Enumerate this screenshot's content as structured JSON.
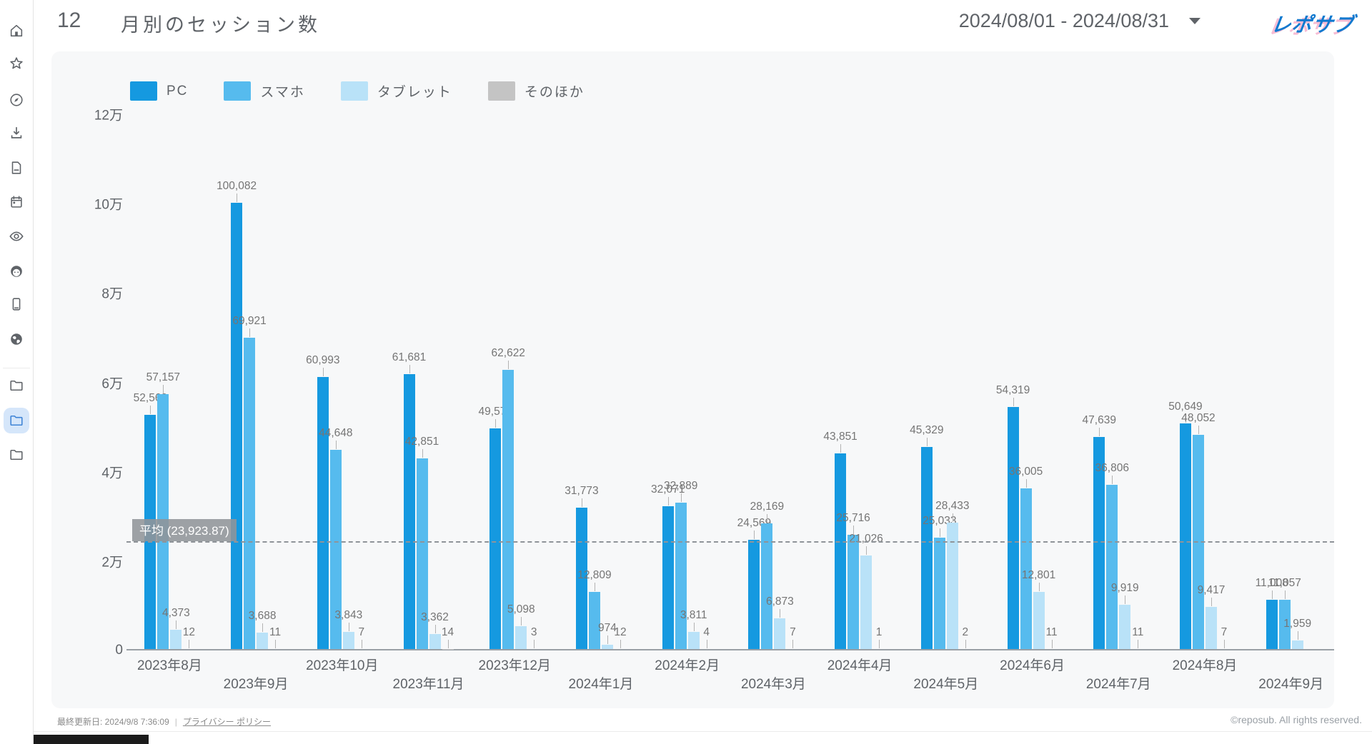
{
  "sidebar": {
    "icons_top": [
      "home",
      "star",
      "compass",
      "download",
      "document",
      "calendar",
      "eye",
      "face",
      "smartphone",
      "globe"
    ],
    "icons_bottom": [
      "folder",
      "folder",
      "folder"
    ],
    "selected_bottom_index": 1
  },
  "header": {
    "page_number": "12",
    "title": "月別のセッション数",
    "date_range": "2024/08/01 - 2024/08/31",
    "brand": "レポサブ"
  },
  "chart_data": {
    "type": "bar",
    "title": "月別のセッション数",
    "categories": [
      "2023年8月",
      "2023年9月",
      "2023年10月",
      "2023年11月",
      "2023年12月",
      "2024年1月",
      "2024年2月",
      "2024年3月",
      "2024年4月",
      "2024年5月",
      "2024年6月",
      "2024年7月",
      "2024年8月",
      "2024年9月"
    ],
    "series": [
      {
        "name": "PC",
        "color": "#1599e0",
        "values": [
          52562,
          100082,
          60993,
          61681,
          49575,
          31773,
          32071,
          24569,
          43851,
          45329,
          54319,
          47639,
          50649,
          11008
        ]
      },
      {
        "name": "スマホ",
        "color": "#56bbee",
        "values": [
          57157,
          69921,
          44648,
          42851,
          62622,
          12809,
          32889,
          28169,
          25716,
          25033,
          36005,
          36806,
          48052,
          11057
        ]
      },
      {
        "name": "タブレット",
        "color": "#b9e2f8",
        "values": [
          4373,
          3688,
          3843,
          3362,
          5098,
          974,
          3811,
          6873,
          21026,
          28433,
          12801,
          9919,
          9417,
          1959
        ]
      },
      {
        "name": "そのほか",
        "color": "#c4c4c4",
        "values": [
          12,
          11,
          7,
          14,
          3,
          12,
          4,
          7,
          1,
          2,
          11,
          11,
          7,
          null
        ]
      }
    ],
    "ylabels": [
      "12万",
      "10万",
      "8万",
      "6万",
      "4万",
      "2万",
      "0"
    ],
    "ylim": [
      0,
      120000
    ],
    "average": {
      "label": "平均 (23,923.87)",
      "value": 23923.87
    },
    "legend_position": "top-left",
    "grid": false
  },
  "footer": {
    "last_updated": "最終更新日: 2024/9/8 7:36:09",
    "privacy_policy": "プライバシー ポリシー",
    "copyright": "©reposub. All rights reserved."
  }
}
